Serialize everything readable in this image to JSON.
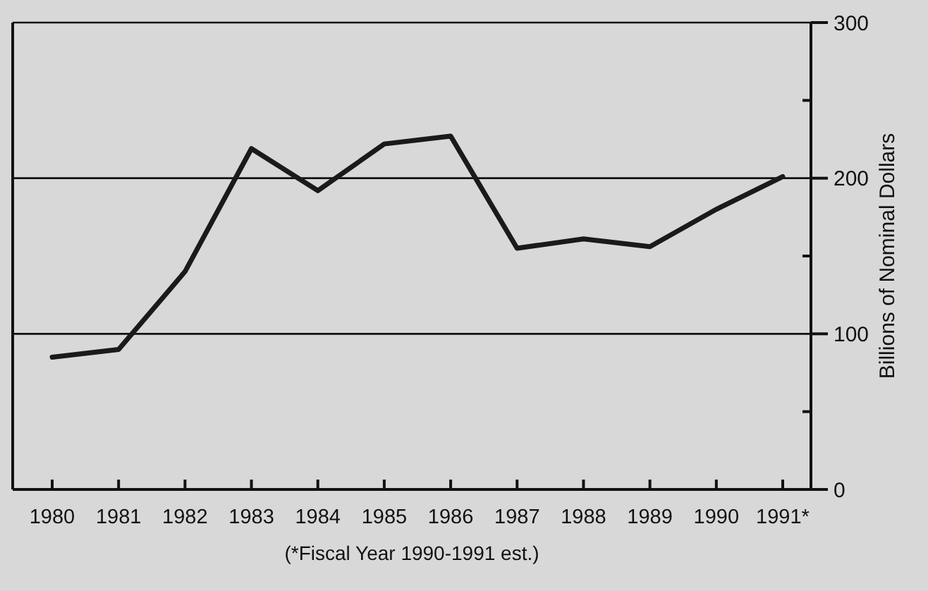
{
  "chart_data": {
    "type": "line",
    "ylabel": "Billions of Nominal Dollars",
    "categories": [
      "1980",
      "1981",
      "1982",
      "1983",
      "1984",
      "1985",
      "1986",
      "1987",
      "1988",
      "1989",
      "1990",
      "1991*"
    ],
    "series": [
      {
        "color": "#1a1a1a",
        "values": [
          85,
          90,
          140,
          219,
          192,
          222,
          227,
          155,
          161,
          156,
          180,
          201
        ]
      }
    ],
    "ylim": [
      0,
      300
    ],
    "yticks": [
      0,
      {
        "value": 50,
        "label": null
      },
      100,
      {
        "value": 150,
        "label": null
      },
      200,
      {
        "value": 250,
        "label": null
      },
      300
    ],
    "grid": "y",
    "marker": "none",
    "line_style": "solid",
    "annotations": [
      "(*Fiscal Year 1990-1991 est.)"
    ]
  }
}
